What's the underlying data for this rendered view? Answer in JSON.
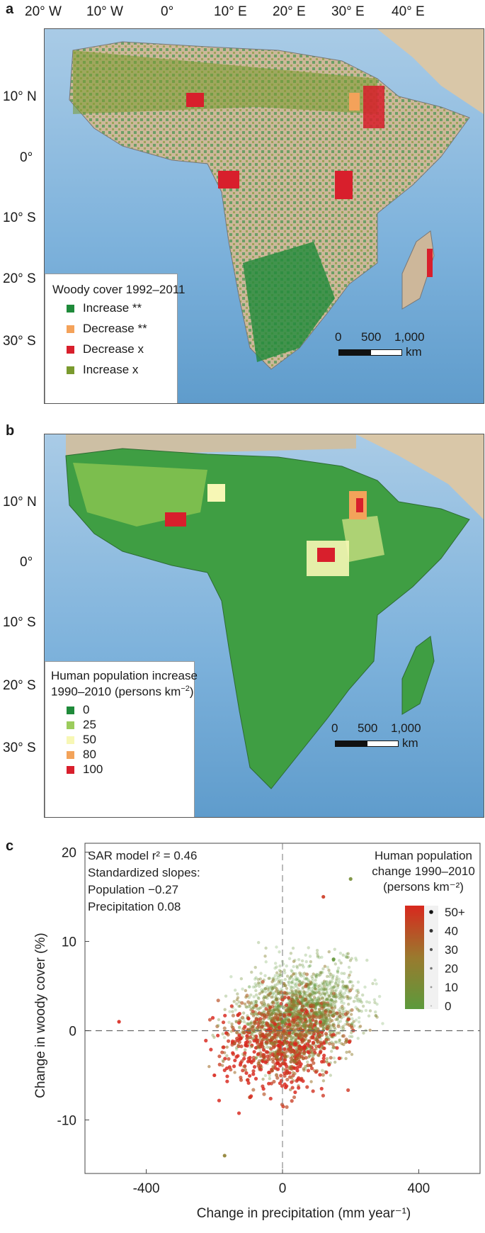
{
  "panel_a": {
    "letter": "a",
    "top_ticks": [
      "20° W",
      "10° W",
      "0°",
      "10° E",
      "20° E",
      "30° E",
      "40° E"
    ],
    "lat_ticks": [
      "10° N",
      "0°",
      "10° S",
      "20° S",
      "30° S"
    ],
    "legend_title": "Woody cover 1992–2011",
    "legend_items": [
      {
        "label": "Increase **",
        "color": "#1f8a3a"
      },
      {
        "label": "Decrease **",
        "color": "#f4a25a"
      },
      {
        "label": "Decrease x",
        "color": "#d81f2c"
      },
      {
        "label": "Increase x",
        "color": "#7a9a2e"
      }
    ],
    "scale": {
      "labels": [
        "0",
        "500",
        "1,000"
      ],
      "unit": "km"
    }
  },
  "panel_b": {
    "letter": "b",
    "lat_ticks": [
      "10° N",
      "0°",
      "10° S",
      "20° S",
      "30° S"
    ],
    "legend_title_line1": "Human population increase",
    "legend_title_line2": "1990–2010 (persons km",
    "legend_title_sup": "−2",
    "legend_title_end": ")",
    "legend_items": [
      {
        "label": "0",
        "color": "#1f8a3a"
      },
      {
        "label": "25",
        "color": "#9ccc5c"
      },
      {
        "label": "50",
        "color": "#f7f7b5"
      },
      {
        "label": "80",
        "color": "#f3a35a"
      },
      {
        "label": "100",
        "color": "#d81f2c"
      }
    ],
    "scale": {
      "labels": [
        "0",
        "500",
        "1,000"
      ],
      "unit": "km"
    }
  },
  "panel_c": {
    "letter": "c",
    "annotation_lines": [
      "SAR model r² = 0.46",
      "Standardized slopes:",
      "Population −0.27",
      "Precipitation 0.08"
    ],
    "legend_title_lines": [
      "Human population",
      "change 1990–2010",
      "(persons km⁻²)"
    ],
    "legend_levels": [
      "50+",
      "40",
      "30",
      "20",
      "10",
      "0"
    ],
    "colors": {
      "low": "#5c9a3c",
      "mid": "#9a7a2e",
      "high": "#d8281e"
    }
  },
  "chart_data": {
    "type": "scatter",
    "title": "",
    "xlabel": "Change in precipitation (mm year⁻¹)",
    "ylabel": "Change in woody cover (%)",
    "xlim": [
      -580,
      580
    ],
    "ylim": [
      -16,
      21
    ],
    "xticks": [
      -400,
      0,
      400
    ],
    "yticks": [
      -10,
      0,
      10,
      20
    ],
    "xtick_labels": [
      "-400",
      "0",
      "400"
    ],
    "ytick_labels": [
      "-10",
      "0",
      "10",
      "20"
    ],
    "reference_lines": {
      "x": 0,
      "y": 0
    },
    "grid": false,
    "legend_placement": "top-right",
    "color_variable": "Human population change 1990–2010 (persons km⁻²)",
    "point_cloud_description_points": [
      {
        "x": 0,
        "y": 1,
        "pop": 5
      },
      {
        "x": 100,
        "y": 3,
        "pop": 5
      },
      {
        "x": 150,
        "y": 8,
        "pop": 3
      },
      {
        "x": -100,
        "y": 0,
        "pop": 30
      },
      {
        "x": 50,
        "y": -2,
        "pop": 40
      },
      {
        "x": -200,
        "y": -5,
        "pop": 50
      },
      {
        "x": 120,
        "y": 15,
        "pop": 45
      },
      {
        "x": -480,
        "y": 1,
        "pop": 50
      },
      {
        "x": -170,
        "y": -14,
        "pop": 20
      },
      {
        "x": 200,
        "y": 17,
        "pop": 10
      }
    ]
  }
}
